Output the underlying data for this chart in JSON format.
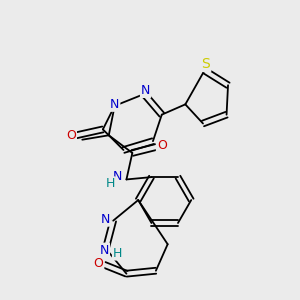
{
  "background_color": "#ebebeb",
  "bond_color": "#000000",
  "atom_colors": {
    "N": "#0000cc",
    "O": "#cc0000",
    "S": "#cccc00",
    "H": "#008888",
    "C": "#000000"
  },
  "font_size": 9
}
